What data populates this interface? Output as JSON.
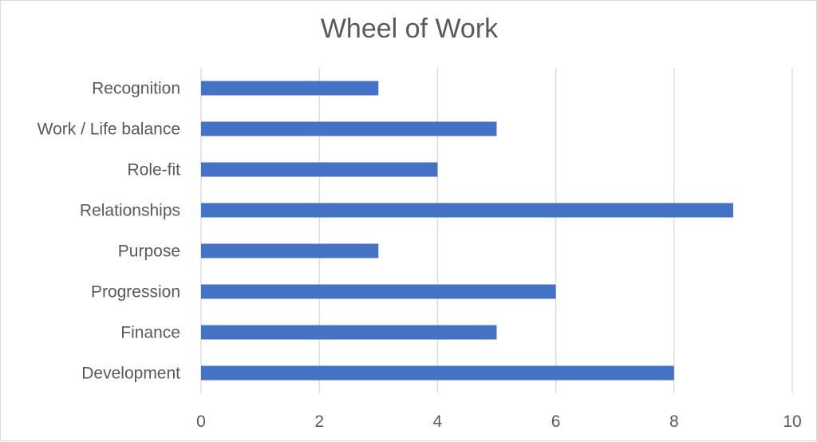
{
  "chart_data": {
    "type": "bar",
    "orientation": "horizontal",
    "title": "Wheel of Work",
    "xlabel": "",
    "ylabel": "",
    "categories": [
      "Development",
      "Finance",
      "Progression",
      "Purpose",
      "Relationships",
      "Role-fit",
      "Work / Life balance",
      "Recognition"
    ],
    "values": [
      8,
      5,
      6,
      3,
      9,
      4,
      5,
      3
    ],
    "xlim": [
      0,
      10
    ],
    "x_ticks": [
      "0",
      "2",
      "4",
      "6",
      "8",
      "10"
    ],
    "grid": "vertical",
    "legend": "none",
    "bar_color": "#4472C4",
    "grid_color": "#d9d9d9"
  }
}
